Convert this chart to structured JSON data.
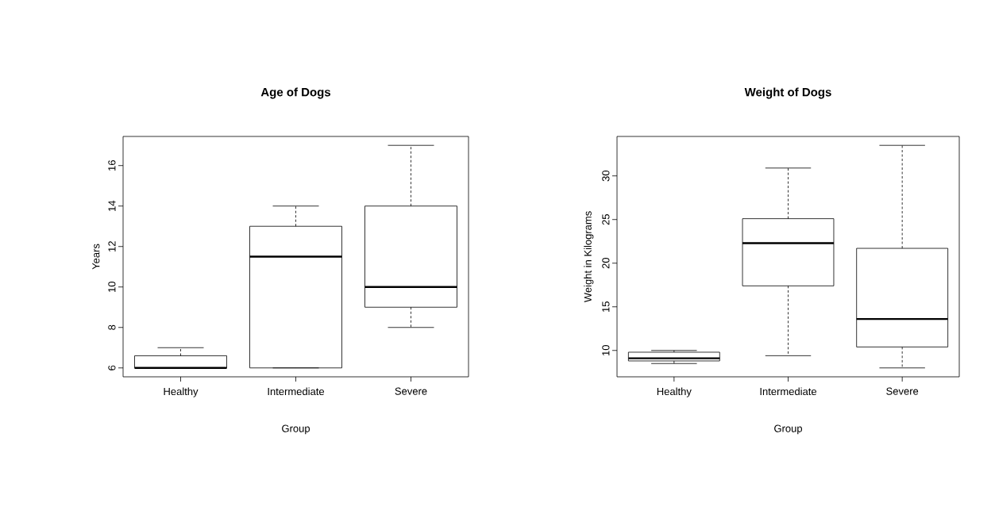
{
  "chart_data": [
    {
      "type": "box",
      "title": "Age of Dogs",
      "xlabel": "Group",
      "ylabel": "Years",
      "categories": [
        "Healthy",
        "Intermediate",
        "Severe"
      ],
      "boxes": [
        {
          "low": 6,
          "q1": 6,
          "median": 6,
          "q3": 6.6,
          "high": 7
        },
        {
          "low": 6,
          "q1": 6,
          "median": 11.5,
          "q3": 13,
          "high": 14
        },
        {
          "low": 8,
          "q1": 9,
          "median": 10,
          "q3": 14,
          "high": 17
        }
      ],
      "ylim": [
        5.56,
        17.44
      ],
      "yticks": [
        6,
        8,
        10,
        12,
        14,
        16
      ],
      "grid": false
    },
    {
      "type": "box",
      "title": "Weight of Dogs",
      "xlabel": "Group",
      "ylabel": "Weight in Kilograms",
      "categories": [
        "Healthy",
        "Intermediate",
        "Severe"
      ],
      "boxes": [
        {
          "low": 8.5,
          "q1": 8.8,
          "median": 9.1,
          "q3": 9.8,
          "high": 10
        },
        {
          "low": 9.4,
          "q1": 17.4,
          "median": 22.3,
          "q3": 25.1,
          "high": 30.9
        },
        {
          "low": 8.0,
          "q1": 10.4,
          "median": 13.6,
          "q3": 21.7,
          "high": 33.5
        }
      ],
      "ylim": [
        6.98,
        34.52
      ],
      "yticks": [
        10,
        15,
        20,
        25,
        30
      ],
      "grid": false
    }
  ]
}
